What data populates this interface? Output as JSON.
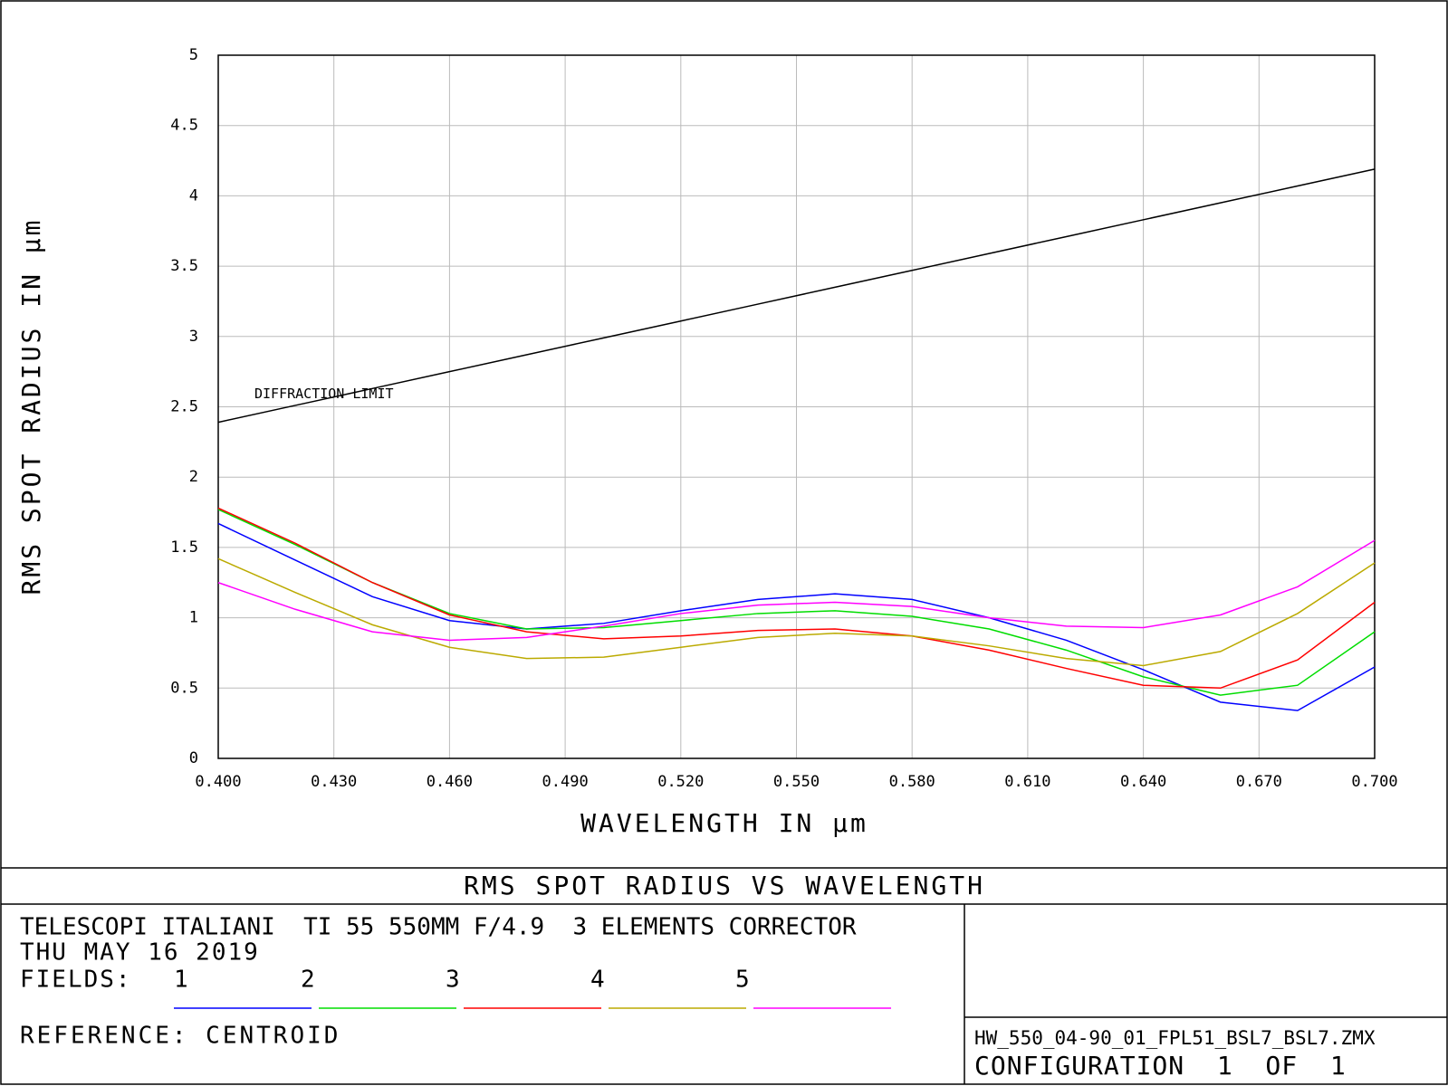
{
  "chart_data": {
    "type": "line",
    "title": "RMS SPOT RADIUS VS WAVELENGTH",
    "x_label": "WAVELENGTH IN µm",
    "y_label": "RMS SPOT RADIUS IN µm",
    "x": [
      0.4,
      0.42,
      0.44,
      0.46,
      0.48,
      0.5,
      0.52,
      0.54,
      0.56,
      0.58,
      0.6,
      0.62,
      0.64,
      0.66,
      0.68,
      0.7
    ],
    "xlim": [
      0.4,
      0.7
    ],
    "xticks": [
      {
        "value": 0.4,
        "label": "0.400"
      },
      {
        "value": 0.43,
        "label": "0.430"
      },
      {
        "value": 0.46,
        "label": "0.460"
      },
      {
        "value": 0.49,
        "label": "0.490"
      },
      {
        "value": 0.52,
        "label": "0.520"
      },
      {
        "value": 0.55,
        "label": "0.550"
      },
      {
        "value": 0.58,
        "label": "0.580"
      },
      {
        "value": 0.61,
        "label": "0.610"
      },
      {
        "value": 0.64,
        "label": "0.640"
      },
      {
        "value": 0.67,
        "label": "0.670"
      },
      {
        "value": 0.7,
        "label": "0.700"
      }
    ],
    "ylim": [
      0,
      5
    ],
    "yticks": [
      0,
      0.5,
      1,
      1.5,
      2,
      2.5,
      3,
      3.5,
      4,
      4.5,
      5
    ],
    "grid": true,
    "legend_label": "FIELDS:",
    "series": [
      {
        "name": "DIFFRACTION LIMIT",
        "color": "#000000",
        "values": [
          2.39,
          2.51,
          2.63,
          2.75,
          2.87,
          2.99,
          3.11,
          3.23,
          3.35,
          3.47,
          3.59,
          3.71,
          3.83,
          3.95,
          4.07,
          4.19
        ]
      },
      {
        "name": "1",
        "color": "#0000ff",
        "values": [
          1.67,
          1.41,
          1.15,
          0.98,
          0.92,
          0.96,
          1.05,
          1.13,
          1.17,
          1.13,
          1.0,
          0.84,
          0.63,
          0.4,
          0.34,
          0.65
        ]
      },
      {
        "name": "2",
        "color": "#00dd00",
        "values": [
          1.77,
          1.52,
          1.25,
          1.03,
          0.92,
          0.93,
          0.98,
          1.03,
          1.05,
          1.01,
          0.92,
          0.77,
          0.58,
          0.45,
          0.52,
          0.9
        ]
      },
      {
        "name": "3",
        "color": "#ff0000",
        "values": [
          1.78,
          1.53,
          1.25,
          1.02,
          0.9,
          0.85,
          0.87,
          0.91,
          0.92,
          0.87,
          0.77,
          0.64,
          0.52,
          0.5,
          0.7,
          1.11
        ]
      },
      {
        "name": "4",
        "color": "#bbaa00",
        "values": [
          1.42,
          1.18,
          0.95,
          0.79,
          0.71,
          0.72,
          0.79,
          0.86,
          0.89,
          0.87,
          0.8,
          0.71,
          0.66,
          0.76,
          1.03,
          1.39
        ]
      },
      {
        "name": "5",
        "color": "#ff00ff",
        "values": [
          1.25,
          1.06,
          0.9,
          0.84,
          0.86,
          0.94,
          1.03,
          1.09,
          1.11,
          1.08,
          1.0,
          0.94,
          0.93,
          1.02,
          1.22,
          1.55
        ]
      }
    ]
  },
  "footer": {
    "lines": [
      "TELESCOPI ITALIANI  TI 55 550MM F/4.9  3 ELEMENTS CORRECTOR",
      "THU MAY 16 2019"
    ],
    "reference": "REFERENCE: CENTROID",
    "file": "HW_550_04-90_01_FPL51_BSL7_BSL7.ZMX",
    "configuration": "CONFIGURATION  1  OF  1"
  }
}
